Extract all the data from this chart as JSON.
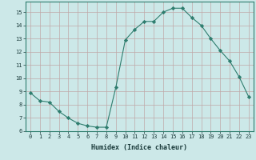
{
  "x": [
    0,
    1,
    2,
    3,
    4,
    5,
    6,
    7,
    8,
    9,
    10,
    11,
    12,
    13,
    14,
    15,
    16,
    17,
    18,
    19,
    20,
    21,
    22,
    23
  ],
  "y": [
    8.9,
    8.3,
    8.2,
    7.5,
    7.0,
    6.6,
    6.4,
    6.3,
    6.3,
    9.3,
    12.9,
    13.7,
    14.3,
    14.3,
    15.0,
    15.3,
    15.3,
    14.6,
    14.0,
    13.0,
    12.1,
    11.3,
    10.1,
    8.6
  ],
  "line_color": "#2e7d6e",
  "marker": "D",
  "marker_size": 2.2,
  "bg_color": "#cce8e8",
  "grid_color": "#c0a8a8",
  "xlabel": "Humidex (Indice chaleur)",
  "xlim": [
    -0.5,
    23.5
  ],
  "ylim": [
    6,
    15.8
  ],
  "yticks": [
    6,
    7,
    8,
    9,
    10,
    11,
    12,
    13,
    14,
    15
  ],
  "xticks": [
    0,
    1,
    2,
    3,
    4,
    5,
    6,
    7,
    8,
    9,
    10,
    11,
    12,
    13,
    14,
    15,
    16,
    17,
    18,
    19,
    20,
    21,
    22,
    23
  ],
  "axis_fontsize": 5.5,
  "tick_fontsize": 5.0,
  "xlabel_fontsize": 6.0
}
